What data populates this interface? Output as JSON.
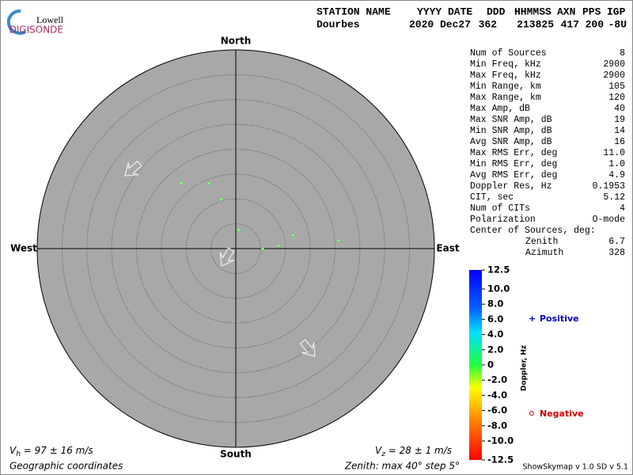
{
  "header": {
    "labels": [
      "STATION NAME",
      "YYYY DATE",
      "DDD",
      "HHMMSS",
      "AXN",
      "PPS",
      "IGP"
    ],
    "values": [
      "Dourbes",
      "2020 Dec27",
      "362",
      "213825",
      "417",
      "200",
      "-8U"
    ]
  },
  "logo": {
    "top": "Lowell",
    "bottom": "DIGISONDE"
  },
  "chart_data": {
    "type": "scatter",
    "x": [
      -11.0,
      -5.4,
      -2.9,
      0.6,
      5.4,
      8.6,
      11.5,
      20.7
    ],
    "y": [
      13.2,
      13.1,
      9.9,
      3.8,
      0.0,
      0.6,
      2.7,
      1.6
    ],
    "xlim": [
      -40,
      40
    ],
    "ylim": [
      -40,
      40
    ],
    "ring_step": 5,
    "color": "#8cff8c",
    "directions": {
      "north": "North",
      "south": "South",
      "east": "East",
      "west": "West"
    },
    "colorbar": {
      "label": "Doppler, Hz",
      "lim": [
        -12.5,
        12.5
      ],
      "ticks": [
        12.5,
        {
          "value": 10,
          "label": "10.0"
        },
        {
          "value": 8,
          "label": "8.0"
        },
        {
          "value": 6,
          "label": "6.0"
        },
        {
          "value": 4,
          "label": "4.0"
        },
        {
          "value": 2,
          "label": "2.0"
        },
        0,
        {
          "value": -2,
          "label": "-2.0"
        },
        {
          "value": -4,
          "label": "-4.0"
        },
        {
          "value": -6,
          "label": "-6.0"
        },
        {
          "value": -8,
          "label": "-8.0"
        },
        {
          "value": -10,
          "label": "-10.0"
        },
        -12.5
      ]
    },
    "legend": {
      "positive": "Positive",
      "negative": "Negative"
    }
  },
  "parameters": [
    [
      "Num of Sources",
      "8"
    ],
    [
      "Min Freq, kHz",
      "2900"
    ],
    [
      "Max Freq, kHz",
      "2900"
    ],
    [
      "Min Range, km",
      "105"
    ],
    [
      "Max Range, km",
      "120"
    ],
    [
      "Max Amp, dB",
      "40"
    ],
    [
      "Max SNR Amp, dB",
      "19"
    ],
    [
      "Min SNR Amp, dB",
      "14"
    ],
    [
      "Avg SNR Amp, dB",
      "16"
    ],
    [
      "Max RMS Err, deg",
      "11.0"
    ],
    [
      "Min RMS Err, deg",
      "1.0"
    ],
    [
      "Avg RMS Err, deg",
      "4.9"
    ],
    [
      "Doppler Res, Hz",
      "0.1953"
    ],
    [
      "CIT, sec",
      "5.12"
    ],
    [
      "Num of CITs",
      "4"
    ],
    [
      "Polarization",
      "O-mode"
    ]
  ],
  "center": {
    "title": "Center of Sources, deg:",
    "zenith_label": "Zenith",
    "zenith": "6.7",
    "azimuth_label": "Azimuth",
    "azimuth": "328"
  },
  "footer": {
    "vh": {
      "symbol": "V",
      "sub": "h",
      "text": " = 97 ± 16 m/s"
    },
    "vz": {
      "symbol": "V",
      "sub": "z",
      "text": " = 28 ± 1 m/s"
    },
    "coordinates": "Geographic coordinates",
    "zenith": "Zenith: max 40°  step 5°",
    "version": "ShowSkymap v 1.0  SD v 5.1"
  }
}
